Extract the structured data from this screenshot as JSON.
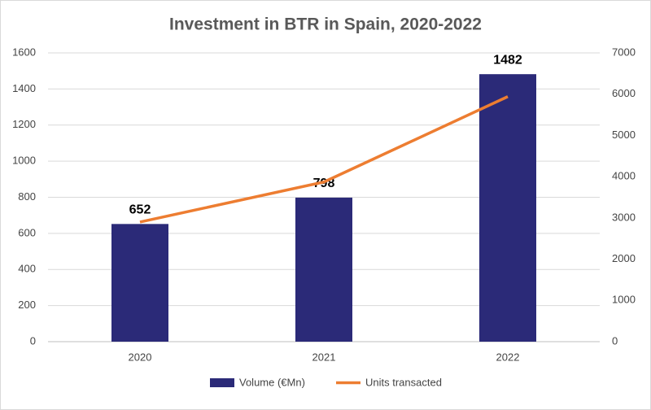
{
  "chart_data": {
    "type": "bar",
    "title": "Investment in BTR in Spain, 2020-2022",
    "categories": [
      "2020",
      "2021",
      "2022"
    ],
    "series": [
      {
        "name": "Volume (€Mn)",
        "type": "bar",
        "color": "#2b2a78",
        "values": [
          652,
          798,
          1482
        ]
      },
      {
        "name": "Units transacted",
        "type": "line",
        "axis": "y2",
        "color": "#ed7d31",
        "values": [
          2900,
          3870,
          5940
        ]
      }
    ],
    "ylim": [
      0,
      1600
    ],
    "yticks": [
      0,
      200,
      400,
      600,
      800,
      1000,
      1200,
      1400,
      1600
    ],
    "y2lim": [
      0,
      7000
    ],
    "y2ticks": [
      0,
      1000,
      2000,
      3000,
      4000,
      5000,
      6000,
      7000
    ],
    "grid": true,
    "legend": "bottom"
  }
}
